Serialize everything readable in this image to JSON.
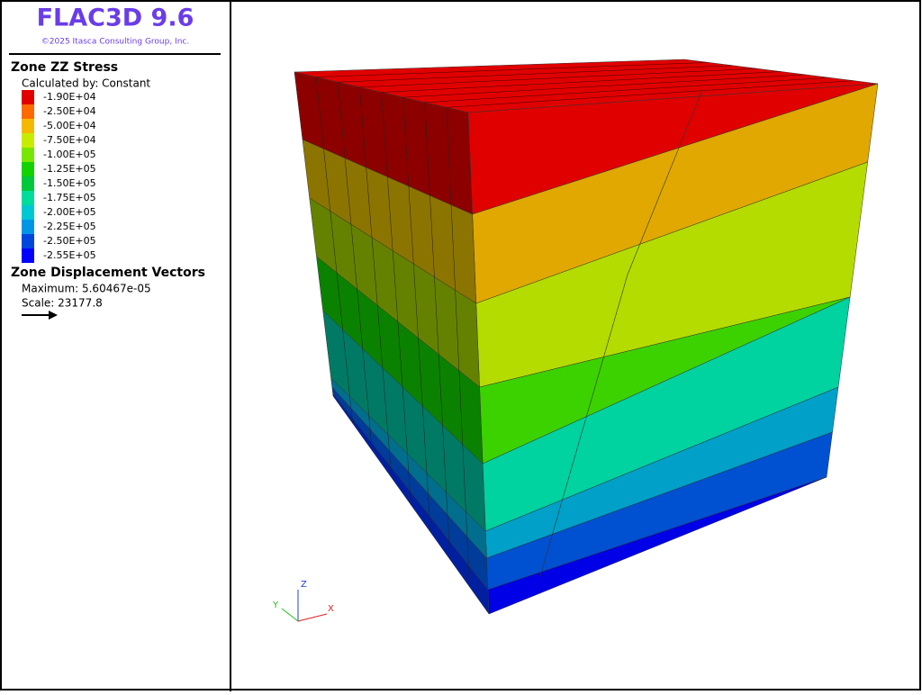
{
  "header": {
    "title": "FLAC3D 9.6",
    "copyright": "©2025 Itasca Consulting Group, Inc."
  },
  "legend": {
    "title": "Zone ZZ Stress",
    "subtitle": "Calculated by: Constant",
    "items": [
      {
        "label": "-1.90E+04",
        "color": "#e00000"
      },
      {
        "label": "-2.50E+04",
        "color": "#ff6a00"
      },
      {
        "label": "-5.00E+04",
        "color": "#f5b800"
      },
      {
        "label": "-7.50E+04",
        "color": "#c8ec00"
      },
      {
        "label": "-1.00E+05",
        "color": "#78e600"
      },
      {
        "label": "-1.25E+05",
        "color": "#14d200"
      },
      {
        "label": "-1.50E+05",
        "color": "#00c83c"
      },
      {
        "label": "-1.75E+05",
        "color": "#00dc9c"
      },
      {
        "label": "-2.00E+05",
        "color": "#00c8d2"
      },
      {
        "label": "-2.25E+05",
        "color": "#0096e6"
      },
      {
        "label": "-2.50E+05",
        "color": "#0046dc"
      },
      {
        "label": "-2.55E+05",
        "color": "#0000ff"
      }
    ]
  },
  "vectors": {
    "title": "Zone Displacement Vectors",
    "maximum": "Maximum: 5.60467e-05",
    "scale": "Scale: 23177.8"
  },
  "axes": {
    "z": "Z",
    "y": "Y",
    "x": "X"
  }
}
